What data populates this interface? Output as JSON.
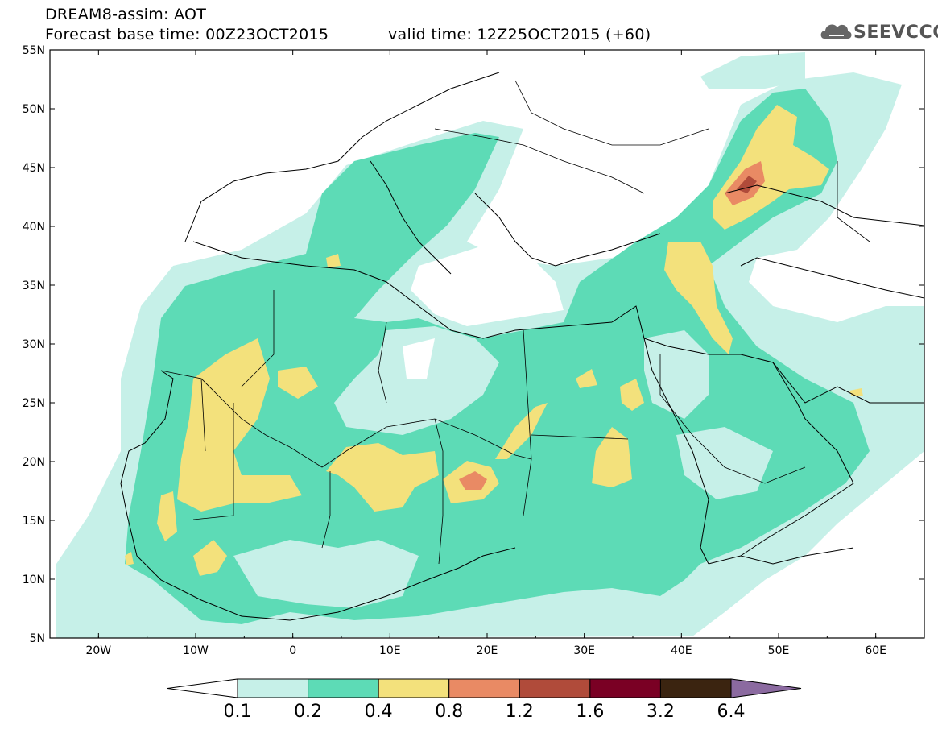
{
  "header": {
    "line1": "DREAM8-assim: AOT",
    "line2": "Forecast base time: 00Z23OCT2015",
    "line3": "valid time: 12Z25OCT2015 (+60)"
  },
  "logo": {
    "text": "SEEVCCC",
    "icon": "cloud-icon"
  },
  "axes": {
    "lat_labels": [
      "55N",
      "50N",
      "45N",
      "40N",
      "35N",
      "30N",
      "25N",
      "20N",
      "15N",
      "10N",
      "5N"
    ],
    "lon_labels": [
      "20W",
      "10W",
      "0",
      "10E",
      "20E",
      "30E",
      "40E",
      "50E",
      "60E"
    ],
    "lon_range": [
      -25,
      65
    ],
    "lat_range": [
      5,
      55
    ]
  },
  "colorbar": {
    "labels": [
      "0.1",
      "0.2",
      "0.4",
      "0.8",
      "1.2",
      "1.6",
      "3.2",
      "6.4"
    ],
    "colors": [
      "#ffffff",
      "#c6f0e8",
      "#5ddbb6",
      "#f3e17c",
      "#e98a64",
      "#b04b3a",
      "#7a0024",
      "#3b2410",
      "#8b6aa0"
    ]
  },
  "legend_colors": {
    "low": "#c6f0e8",
    "mid": "#5ddbb6",
    "high": "#f3e17c",
    "higher": "#e98a64",
    "peak": "#b04b3a"
  }
}
